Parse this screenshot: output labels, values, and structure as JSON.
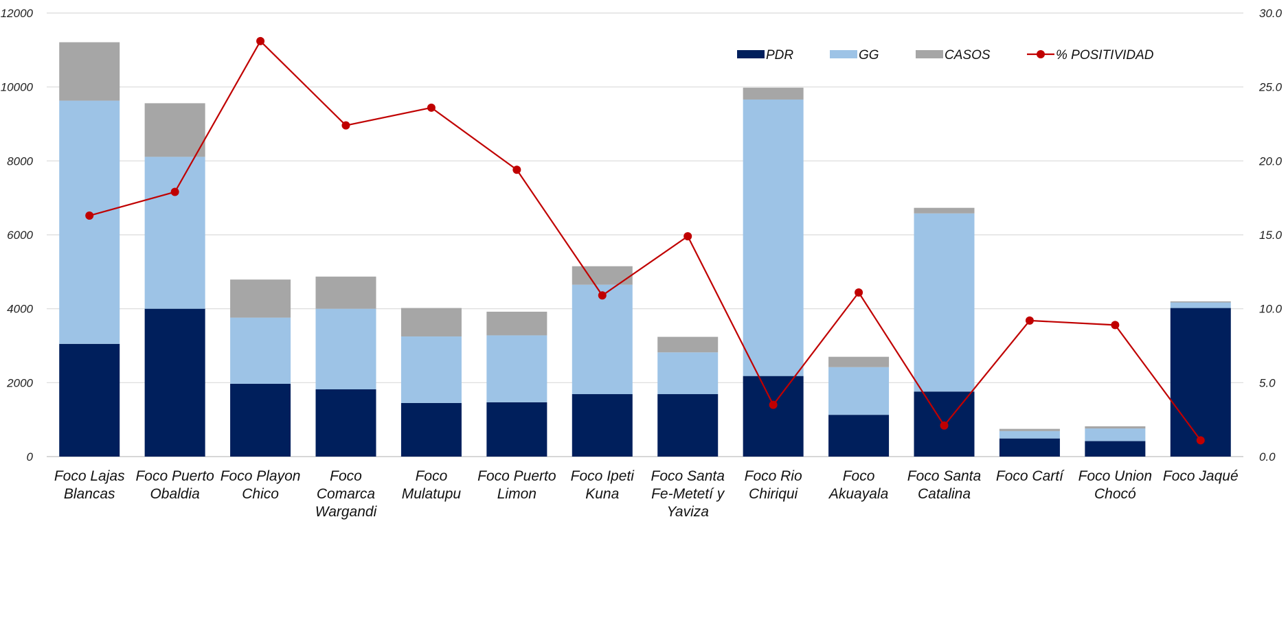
{
  "chart_data": {
    "type": "bar",
    "title": "",
    "categories": [
      [
        "Foco Lajas",
        "Blancas"
      ],
      [
        "Foco Puerto",
        "Obaldia"
      ],
      [
        "Foco Playon",
        "Chico"
      ],
      [
        "Foco",
        "Comarca",
        "Wargandi"
      ],
      [
        "Foco",
        "Mulatupu"
      ],
      [
        "Foco Puerto",
        "Limon"
      ],
      [
        "Foco Ipeti",
        "Kuna"
      ],
      [
        "Foco Santa",
        "Fe-Metetí y",
        "Yaviza"
      ],
      [
        "Foco Rio",
        "Chiriqui"
      ],
      [
        "Foco",
        "Akuayala"
      ],
      [
        "Foco Santa",
        "Catalina"
      ],
      [
        "Foco Cartí"
      ],
      [
        "Foco Union",
        "Chocó"
      ],
      [
        "Foco Jaqué"
      ]
    ],
    "series": [
      {
        "name": "PDR",
        "type": "bar",
        "color": "#001f5c",
        "values": [
          3050,
          4000,
          1970,
          1820,
          1450,
          1470,
          1690,
          1690,
          2180,
          1130,
          1760,
          490,
          420,
          4020
        ]
      },
      {
        "name": "GG",
        "type": "bar",
        "color": "#9dc3e6",
        "values": [
          6580,
          4110,
          1790,
          2180,
          1800,
          1810,
          2960,
          1130,
          7480,
          1290,
          4820,
          200,
          340,
          150
        ]
      },
      {
        "name": "CASOS",
        "type": "bar",
        "color": "#a6a6a6",
        "values": [
          1580,
          1450,
          1030,
          870,
          770,
          640,
          500,
          420,
          320,
          280,
          150,
          60,
          60,
          30
        ]
      },
      {
        "name": "% POSITIVIDAD",
        "type": "line",
        "axis": "right",
        "color": "#c00000",
        "values": [
          16.3,
          17.9,
          28.1,
          22.4,
          23.6,
          19.4,
          10.9,
          14.9,
          3.5,
          11.1,
          2.1,
          9.2,
          8.9,
          1.1
        ]
      }
    ],
    "y_left": {
      "min": 0,
      "max": 12000,
      "ticks": [
        "0",
        "2000",
        "4000",
        "6000",
        "8000",
        "10000",
        "12000"
      ]
    },
    "y_right": {
      "min": 0,
      "max": 30,
      "ticks": [
        "0.0",
        "5.0",
        "10.0",
        "15.0",
        "20.0",
        "25.0",
        "30.0"
      ]
    },
    "grid": true,
    "legend_position": "top-right",
    "stacked": true
  }
}
